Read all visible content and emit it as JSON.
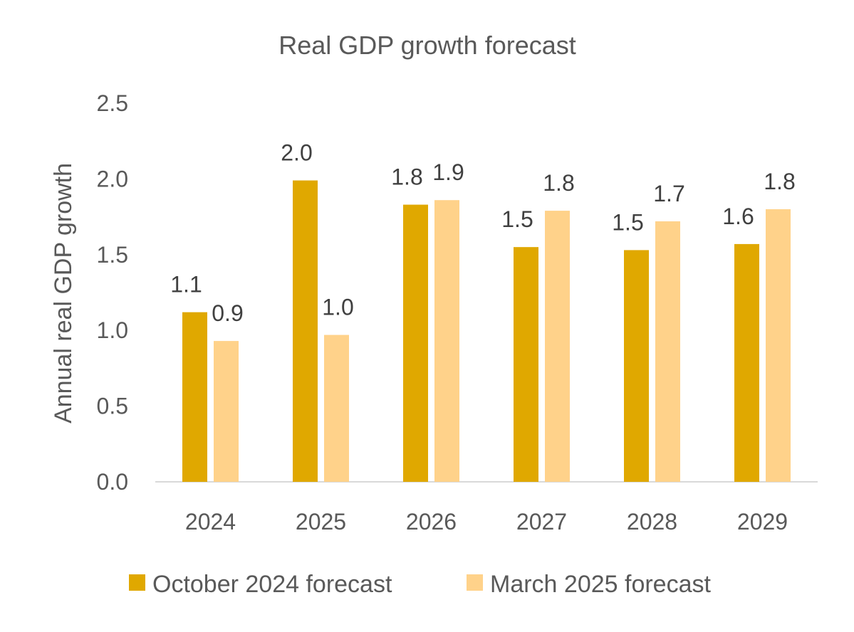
{
  "chart_data": {
    "type": "bar",
    "title": "Real GDP growth forecast",
    "xlabel": "",
    "ylabel": "Annual real GDP growth",
    "categories": [
      "2024",
      "2025",
      "2026",
      "2027",
      "2028",
      "2029"
    ],
    "ylim": [
      0,
      2.5
    ],
    "yticks": [
      "0.0",
      "0.5",
      "1.0",
      "1.5",
      "2.0",
      "2.5"
    ],
    "grid": false,
    "legend_position": "bottom",
    "series": [
      {
        "name": "October 2024 forecast",
        "color": "#E0A800",
        "values": [
          1.12,
          1.99,
          1.83,
          1.55,
          1.53,
          1.57
        ],
        "labels": [
          "1.1",
          "2.0",
          "1.8",
          "1.5",
          "1.5",
          "1.6"
        ]
      },
      {
        "name": "March 2025 forecast",
        "color": "#FFD28A",
        "values": [
          0.93,
          0.97,
          1.86,
          1.79,
          1.72,
          1.8
        ],
        "labels": [
          "0.9",
          "1.0",
          "1.9",
          "1.8",
          "1.7",
          "1.8"
        ]
      }
    ]
  }
}
